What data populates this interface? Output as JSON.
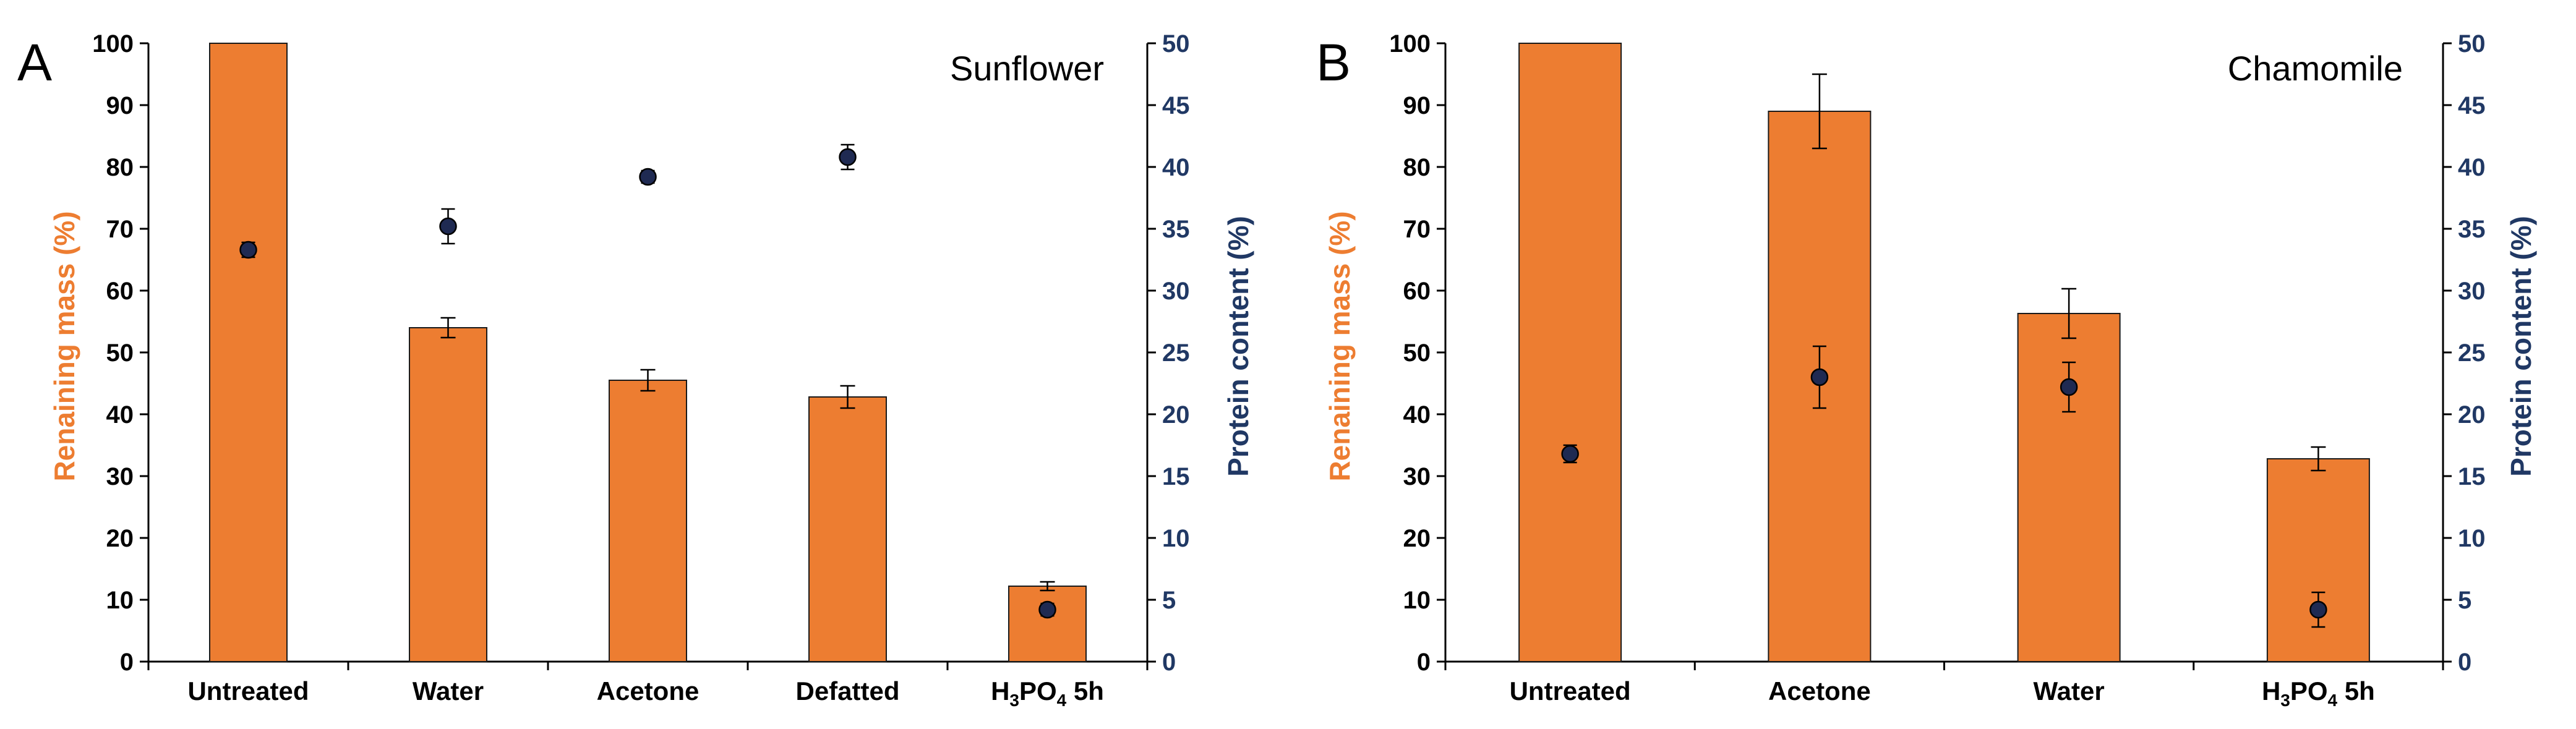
{
  "colors": {
    "bar": "#ED7D31",
    "bar_stroke": "#1a1a1a",
    "marker": "#1F2A52",
    "left_axis_label": "#ED7D31",
    "right_axis_label": "#203864",
    "axis": "#000000"
  },
  "chart_data": [
    {
      "type": "bar",
      "panel_label": "A",
      "title": "Sunflower",
      "categories": [
        "Untreated",
        "Water",
        "Acetone",
        "Defatted",
        "H3PO4 5h"
      ],
      "category_labels": [
        {
          "text": "Untreated"
        },
        {
          "text": "Water"
        },
        {
          "text": "Acetone"
        },
        {
          "text": "Defatted"
        },
        {
          "parts": [
            "H",
            "3",
            "PO",
            "4",
            " 5h"
          ]
        }
      ],
      "series": [
        {
          "name": "Remaining mass (%)",
          "axis": "left",
          "kind": "bar",
          "values": [
            100,
            54,
            45.5,
            42.8,
            12.2
          ],
          "errors": [
            0,
            1.6,
            1.7,
            1.8,
            0.7
          ]
        },
        {
          "name": "Protein content (%)",
          "axis": "right",
          "kind": "marker",
          "values": [
            33.3,
            35.2,
            39.2,
            40.8,
            4.2
          ],
          "errors": [
            0.6,
            1.4,
            0.5,
            1.0,
            0.5
          ]
        }
      ],
      "ylabel": "Renaining mass (%)",
      "y2label": "Protein content (%)",
      "ylim": [
        0,
        100
      ],
      "yticks": [
        0,
        10,
        20,
        30,
        40,
        50,
        60,
        70,
        80,
        90,
        100
      ],
      "y2lim": [
        0,
        50
      ],
      "y2ticks": [
        0,
        5,
        10,
        15,
        20,
        25,
        30,
        35,
        40,
        45,
        50
      ],
      "grid": false
    },
    {
      "type": "bar",
      "panel_label": "B",
      "title": "Chamomile",
      "categories": [
        "Untreated",
        "Acetone",
        "Water",
        "H3PO4 5h"
      ],
      "category_labels": [
        {
          "text": "Untreated"
        },
        {
          "text": "Acetone"
        },
        {
          "text": "Water"
        },
        {
          "parts": [
            "H",
            "3",
            "PO",
            "4",
            " 5h"
          ]
        }
      ],
      "series": [
        {
          "name": "Remaining mass (%)",
          "axis": "left",
          "kind": "bar",
          "values": [
            100,
            89,
            56.3,
            32.8
          ],
          "errors": [
            0,
            6,
            4,
            1.9
          ]
        },
        {
          "name": "Protein content (%)",
          "axis": "right",
          "kind": "marker",
          "values": [
            16.8,
            23,
            22.2,
            4.2
          ],
          "errors": [
            0.7,
            2.5,
            2,
            1.4
          ]
        }
      ],
      "ylabel": "Renaining mass (%)",
      "y2label": "Protein content (%)",
      "ylim": [
        0,
        100
      ],
      "yticks": [
        0,
        10,
        20,
        30,
        40,
        50,
        60,
        70,
        80,
        90,
        100
      ],
      "y2lim": [
        0,
        50
      ],
      "y2ticks": [
        0,
        5,
        10,
        15,
        20,
        25,
        30,
        35,
        40,
        45,
        50
      ],
      "grid": false
    }
  ]
}
